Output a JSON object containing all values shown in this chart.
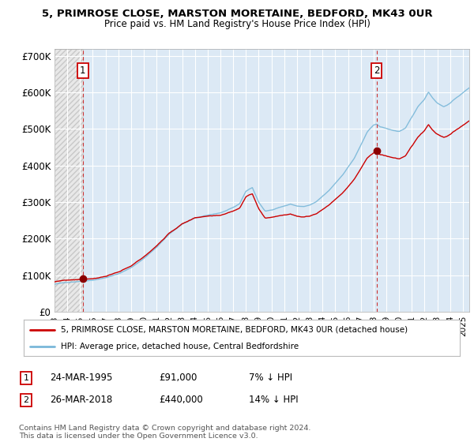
{
  "title_line1": "5, PRIMROSE CLOSE, MARSTON MORETAINE, BEDFORD, MK43 0UR",
  "title_line2": "Price paid vs. HM Land Registry's House Price Index (HPI)",
  "ylim": [
    0,
    720000
  ],
  "yticks": [
    0,
    100000,
    200000,
    300000,
    400000,
    500000,
    600000,
    700000
  ],
  "ytick_labels": [
    "£0",
    "£100K",
    "£200K",
    "£300K",
    "£400K",
    "£500K",
    "£600K",
    "£700K"
  ],
  "hpi_color": "#7ab8d9",
  "price_color": "#cc0000",
  "dashed_line_color": "#cc3333",
  "marker_color": "#8b0000",
  "bg_color": "#dce9f5",
  "hatch_bg_color": "#e8e8e8",
  "hatch_line_color": "#c8c8c8",
  "grid_color": "#ffffff",
  "purchase1_year": 1995.22,
  "purchase1_price": 91000,
  "purchase2_year": 2018.23,
  "purchase2_price": 440000,
  "legend_label1": "5, PRIMROSE CLOSE, MARSTON MORETAINE, BEDFORD, MK43 0UR (detached house)",
  "legend_label2": "HPI: Average price, detached house, Central Bedfordshire",
  "table_row1": [
    "1",
    "24-MAR-1995",
    "£91,000",
    "7% ↓ HPI"
  ],
  "table_row2": [
    "2",
    "26-MAR-2018",
    "£440,000",
    "14% ↓ HPI"
  ],
  "footer": "Contains HM Land Registry data © Crown copyright and database right 2024.\nThis data is licensed under the Open Government Licence v3.0.",
  "xmin": 1993,
  "xmax": 2025.5
}
